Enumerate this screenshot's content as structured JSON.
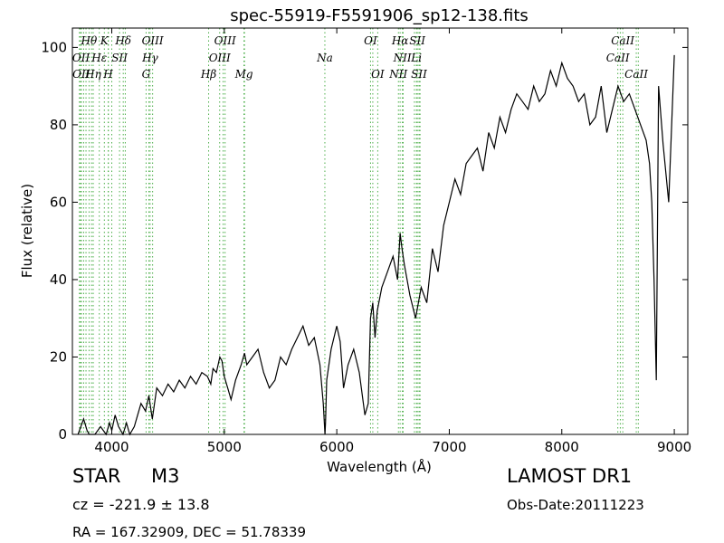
{
  "chart_data": {
    "type": "line",
    "title": "spec-55919-F5591906_sp12-138.fits",
    "xlabel": "Wavelength (Å)",
    "ylabel": "Flux (relative)",
    "xlim": [
      3650,
      9120
    ],
    "ylim": [
      0,
      105
    ],
    "xticks": [
      4000,
      5000,
      6000,
      7000,
      8000,
      9000
    ],
    "yticks": [
      0,
      20,
      40,
      60,
      80,
      100
    ],
    "grid": false,
    "line_color": "#000000",
    "marker_color": "#4daf4a",
    "series": [
      {
        "x": [
          3700,
          3750,
          3780,
          3800,
          3850,
          3900,
          3950,
          3980,
          4000,
          4030,
          4060,
          4100,
          4130,
          4160,
          4200,
          4230,
          4260,
          4300,
          4330,
          4360,
          4400,
          4450,
          4500,
          4550,
          4600,
          4650,
          4700,
          4750,
          4800,
          4850,
          4880,
          4900,
          4930,
          4960,
          4980,
          5000,
          5030,
          5060,
          5100,
          5150,
          5180,
          5200,
          5250,
          5300,
          5350,
          5400,
          5450,
          5500,
          5550,
          5600,
          5650,
          5700,
          5750,
          5800,
          5850,
          5880,
          5895,
          5900,
          5910,
          5950,
          6000,
          6030,
          6060,
          6100,
          6150,
          6200,
          6250,
          6280,
          6300,
          6320,
          6340,
          6360,
          6400,
          6450,
          6500,
          6540,
          6563,
          6580,
          6600,
          6650,
          6700,
          6750,
          6800,
          6850,
          6900,
          6950,
          7000,
          7050,
          7100,
          7150,
          7200,
          7250,
          7300,
          7350,
          7400,
          7450,
          7500,
          7550,
          7600,
          7650,
          7700,
          7750,
          7800,
          7850,
          7900,
          7950,
          8000,
          8050,
          8100,
          8150,
          8200,
          8250,
          8300,
          8350,
          8400,
          8450,
          8500,
          8550,
          8600,
          8650,
          8700,
          8750,
          8780,
          8800,
          8820,
          8840,
          8860,
          8900,
          8950,
          9000
        ],
        "y": [
          0,
          4,
          1,
          0,
          0,
          2,
          0,
          3,
          1,
          5,
          2,
          0,
          3,
          0,
          2,
          5,
          8,
          6,
          10,
          4,
          12,
          10,
          13,
          11,
          14,
          12,
          15,
          13,
          16,
          15,
          13,
          17,
          16,
          20,
          19,
          15,
          12,
          9,
          14,
          18,
          21,
          18,
          20,
          22,
          16,
          12,
          14,
          20,
          18,
          22,
          25,
          28,
          23,
          25,
          18,
          8,
          0,
          3,
          14,
          22,
          28,
          24,
          12,
          18,
          22,
          16,
          5,
          8,
          30,
          34,
          25,
          32,
          38,
          42,
          46,
          40,
          52,
          48,
          44,
          36,
          30,
          38,
          34,
          48,
          42,
          54,
          60,
          66,
          62,
          70,
          72,
          74,
          68,
          78,
          74,
          82,
          78,
          84,
          88,
          86,
          84,
          90,
          86,
          88,
          94,
          90,
          96,
          92,
          90,
          86,
          88,
          80,
          82,
          90,
          78,
          84,
          90,
          86,
          88,
          84,
          80,
          76,
          70,
          60,
          40,
          14,
          90,
          75,
          60,
          98
        ],
        "name": ""
      }
    ],
    "spectral_lines": [
      {
        "label": "Hθ",
        "wavelength": 3798,
        "row": 0
      },
      {
        "label": "OII",
        "wavelength": 3727,
        "row": 1
      },
      {
        "label": "OII",
        "wavelength": 3729,
        "row": 2
      },
      {
        "label": "Hη",
        "wavelength": 3835,
        "row": 2
      },
      {
        "label": "Hε",
        "wavelength": 3889,
        "row": 1
      },
      {
        "label": "K",
        "wavelength": 3934,
        "row": 0
      },
      {
        "label": "H",
        "wavelength": 3968,
        "row": 2
      },
      {
        "label": "SII",
        "wavelength": 4069,
        "row": 1
      },
      {
        "label": "Hδ",
        "wavelength": 4102,
        "row": 0
      },
      {
        "label": "OIII",
        "wavelength": 4363,
        "row": 0
      },
      {
        "label": "Hγ",
        "wavelength": 4341,
        "row": 1
      },
      {
        "label": "G",
        "wavelength": 4305,
        "row": 2
      },
      {
        "label": "OIII",
        "wavelength": 5007,
        "row": 0
      },
      {
        "label": "OIII",
        "wavelength": 4959,
        "row": 1
      },
      {
        "label": "Hβ",
        "wavelength": 4861,
        "row": 2
      },
      {
        "label": "Mg",
        "wavelength": 5175,
        "row": 2
      },
      {
        "label": "Na",
        "wavelength": 5894,
        "row": 1
      },
      {
        "label": "OI",
        "wavelength": 6300,
        "row": 0
      },
      {
        "label": "OI",
        "wavelength": 6364,
        "row": 2
      },
      {
        "label": "Hα",
        "wavelength": 6563,
        "row": 0
      },
      {
        "label": "SII",
        "wavelength": 6716,
        "row": 0
      },
      {
        "label": "NII",
        "wavelength": 6583,
        "row": 1
      },
      {
        "label": "Li",
        "wavelength": 6708,
        "row": 1
      },
      {
        "label": "NII",
        "wavelength": 6548,
        "row": 2
      },
      {
        "label": "SII",
        "wavelength": 6731,
        "row": 2
      },
      {
        "label": "CaII",
        "wavelength": 8542,
        "row": 0
      },
      {
        "label": "CaII",
        "wavelength": 8498,
        "row": 1
      },
      {
        "label": "CaII",
        "wavelength": 8662,
        "row": 2
      }
    ],
    "extra_line_positions": [
      3712,
      3722,
      3750,
      3771,
      3820,
      3970,
      4000,
      4120,
      4330,
      4990,
      5180,
      6320,
      6590,
      6690,
      6740,
      8520,
      8680
    ]
  },
  "info": {
    "object_class": "STAR",
    "object_subclass": "M3",
    "redshift": "cz = -221.9  ± 13.8",
    "coords": "RA = 167.32909, DEC = 51.78339",
    "survey": "LAMOST DR1",
    "obs_date": "Obs-Date:20111223"
  }
}
